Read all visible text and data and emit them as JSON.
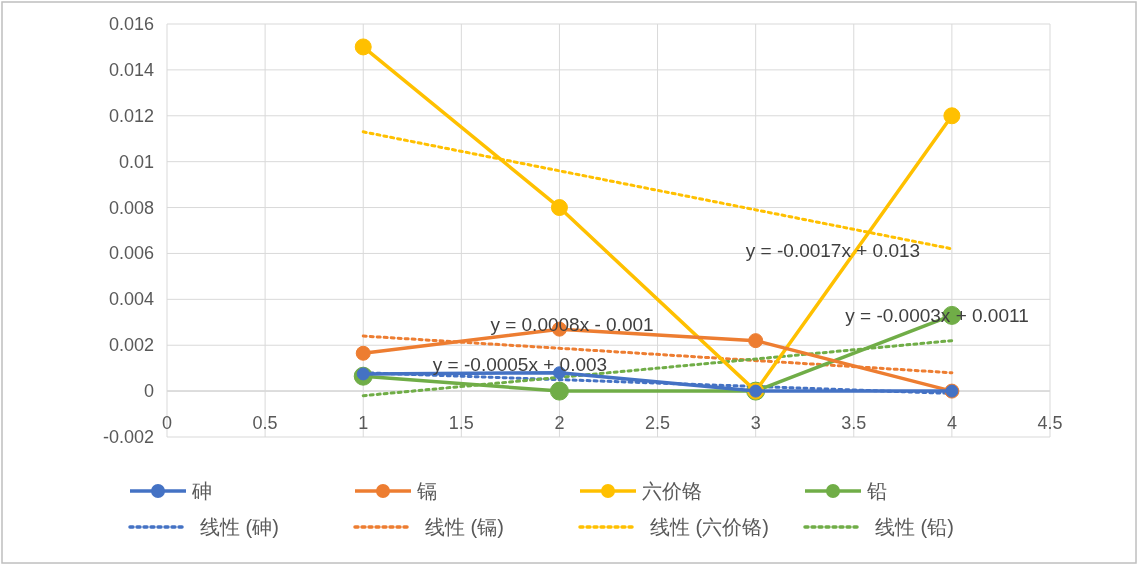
{
  "chart_data": {
    "type": "line",
    "xlim": [
      0,
      4.5
    ],
    "ylim": [
      -0.002,
      0.016
    ],
    "xticks": [
      0,
      0.5,
      1,
      1.5,
      2,
      2.5,
      3,
      3.5,
      4,
      4.5
    ],
    "yticks": [
      -0.002,
      0,
      0.002,
      0.004,
      0.006,
      0.008,
      0.01,
      0.012,
      0.014,
      0.016
    ],
    "grid": true,
    "legend": "bottom",
    "series": [
      {
        "name": "砷",
        "color": "#4472c4",
        "x": [
          1,
          2,
          3,
          4
        ],
        "values": [
          0.00075,
          0.0008,
          0,
          0
        ],
        "marker": "circle",
        "line_style": "solid"
      },
      {
        "name": "镉",
        "color": "#ed7d31",
        "x": [
          1,
          2,
          3,
          4
        ],
        "values": [
          0.00165,
          0.0027,
          0.0022,
          0
        ],
        "marker": "circle",
        "line_style": "solid"
      },
      {
        "name": "六价铬",
        "color": "#ffc000",
        "x": [
          1,
          2,
          3,
          4
        ],
        "values": [
          0.015,
          0.008,
          0,
          0.012
        ],
        "marker": "circle",
        "line_style": "solid"
      },
      {
        "name": "铅",
        "color": "#70ad47",
        "x": [
          1,
          2,
          3,
          4
        ],
        "values": [
          0.00065,
          0,
          0,
          0.0033
        ],
        "marker": "circle",
        "line_style": "solid"
      },
      {
        "name": "线性 (砷)",
        "color": "#4472c4",
        "x": [
          1,
          4
        ],
        "values": [
          0.0008,
          -0.0001
        ],
        "marker": "none",
        "line_style": "dotted"
      },
      {
        "name": "线性 (镉)",
        "color": "#ed7d31",
        "x": [
          1,
          4
        ],
        "values": [
          0.0024,
          0.0008
        ],
        "marker": "none",
        "line_style": "dotted"
      },
      {
        "name": "线性 (六价铬)",
        "color": "#ffc000",
        "x": [
          1,
          4
        ],
        "values": [
          0.0113,
          0.0062
        ],
        "marker": "none",
        "line_style": "dotted"
      },
      {
        "name": "线性 (铅)",
        "color": "#70ad47",
        "x": [
          1,
          4
        ],
        "values": [
          -0.0002,
          0.0022
        ],
        "marker": "none",
        "line_style": "dotted"
      }
    ],
    "annotations": [
      "y = -0.0017x + 0.013",
      "y = -0.0003x + 0.0011",
      "y = 0.0008x - 0.001",
      "y = -0.0005x + 0.003"
    ]
  }
}
